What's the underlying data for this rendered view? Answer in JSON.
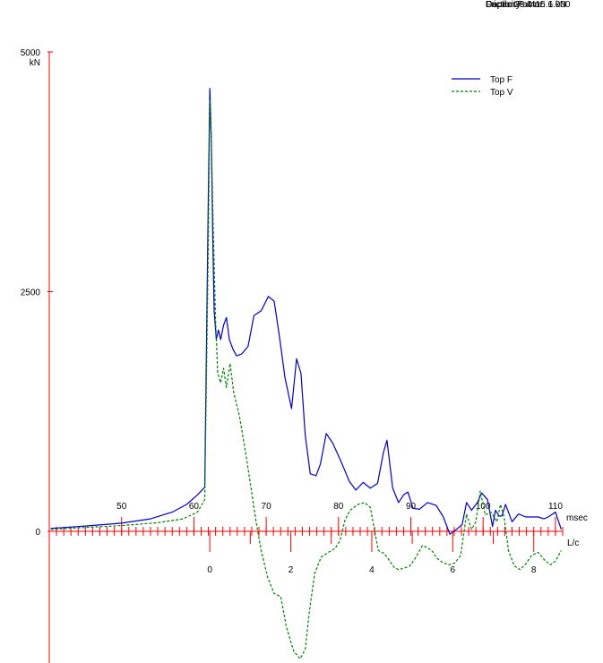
{
  "info": {
    "capacity": "Capacity: 4415.6 kN",
    "depth": "Depth: 28.4 m",
    "friction": "Friction Factor: 1.000"
  },
  "chart_data": {
    "type": "line",
    "title": "",
    "ylabel": "kN",
    "y_ticks": [
      0,
      2500,
      5000
    ],
    "ylim": [
      -1300,
      5000
    ],
    "x_label": "msec",
    "x_ticks": [
      50,
      60,
      70,
      80,
      90,
      100,
      110
    ],
    "xlim": [
      40,
      111
    ],
    "lc_label": "L/c",
    "lc_ticks": [
      0,
      2,
      4,
      6,
      8
    ],
    "lc_at_msec_zero": 62.2,
    "msec_per_lc": 5.6,
    "grid": false,
    "legend_position": "top-right",
    "colors": {
      "top_f": "#0000c8",
      "top_v": "#008000",
      "axis": "#ff0000"
    },
    "series": [
      {
        "name": "Top F",
        "x": [
          40.2,
          45,
          50,
          54,
          57,
          59,
          60.5,
          61.5,
          62.0,
          62.2,
          62.4,
          62.6,
          62.8,
          63.1,
          63.4,
          63.7,
          64.1,
          64.5,
          64.9,
          65.4,
          65.9,
          66.6,
          67.5,
          68.3,
          69.3,
          70.3,
          71.1,
          71.8,
          72.6,
          73.5,
          74.2,
          74.8,
          75.4,
          76.1,
          76.9,
          77.5,
          78.3,
          79.2,
          80.4,
          81.5,
          82.4,
          83.4,
          84.4,
          85.4,
          86.2,
          86.7,
          87.5,
          88.3,
          89.0,
          89.6,
          90.3,
          91.2,
          92.3,
          93.5,
          94.5,
          95.4,
          96.3,
          97.1,
          97.7,
          98.4,
          99.2,
          99.8,
          100.6,
          101.3,
          101.7,
          102.2,
          102.6,
          103.1,
          104.0,
          104.9,
          105.9,
          106.8,
          107.6,
          108.4,
          109.0,
          110.0,
          110.8
        ],
        "values": [
          30,
          55,
          85,
          130,
          200,
          280,
          380,
          460,
          3500,
          4620,
          4100,
          3100,
          2300,
          2000,
          2100,
          2000,
          2150,
          2230,
          2000,
          1900,
          1830,
          1850,
          1930,
          2250,
          2300,
          2450,
          2400,
          2050,
          1600,
          1280,
          1800,
          1650,
          1000,
          600,
          580,
          700,
          1020,
          920,
          720,
          520,
          430,
          510,
          450,
          500,
          820,
          950,
          450,
          300,
          380,
          410,
          240,
          230,
          300,
          270,
          150,
          -30,
          20,
          70,
          300,
          220,
          300,
          400,
          330,
          50,
          220,
          160,
          160,
          280,
          100,
          180,
          150,
          150,
          150,
          130,
          150,
          200,
          20
        ]
      },
      {
        "name": "Top V",
        "x": [
          40.2,
          45,
          50,
          55,
          58.5,
          60.5,
          61.5,
          62.0,
          62.2,
          62.4,
          62.6,
          63.0,
          63.3,
          63.7,
          64.1,
          64.5,
          65.0,
          65.5,
          66.3,
          67.2,
          68.0,
          68.6,
          69.3,
          70.2,
          71.1,
          72.0,
          72.8,
          73.8,
          74.7,
          75.4,
          76.0,
          76.7,
          77.6,
          78.6,
          79.5,
          80.2,
          80.9,
          81.6,
          82.7,
          83.6,
          84.4,
          85.5,
          86.3,
          87.0,
          87.6,
          88.3,
          89.2,
          89.9,
          90.7,
          91.6,
          92.3,
          93.0,
          93.6,
          94.3,
          95.2,
          96.1,
          96.9,
          97.7,
          98.4,
          99.0,
          99.6,
          100.3,
          101.1,
          101.9,
          102.4,
          102.9,
          103.5,
          104.3,
          105.1,
          105.9,
          106.7,
          107.6,
          108.5,
          109.3,
          110.0,
          110.8
        ],
        "values": [
          20,
          40,
          60,
          90,
          130,
          200,
          330,
          3000,
          4500,
          4100,
          3400,
          2200,
          1650,
          1550,
          1700,
          1500,
          1750,
          1450,
          1200,
          800,
          400,
          100,
          -200,
          -480,
          -650,
          -680,
          -1000,
          -1250,
          -1330,
          -1230,
          -820,
          -440,
          -270,
          -220,
          -180,
          -100,
          120,
          220,
          280,
          300,
          250,
          -200,
          -230,
          -300,
          -370,
          -400,
          -380,
          -360,
          -270,
          -150,
          -170,
          -210,
          -280,
          -320,
          -350,
          -330,
          -250,
          180,
          20,
          100,
          420,
          170,
          200,
          100,
          280,
          150,
          -200,
          -360,
          -400,
          -340,
          -250,
          -220,
          -300,
          -350,
          -310,
          -200
        ]
      }
    ]
  }
}
